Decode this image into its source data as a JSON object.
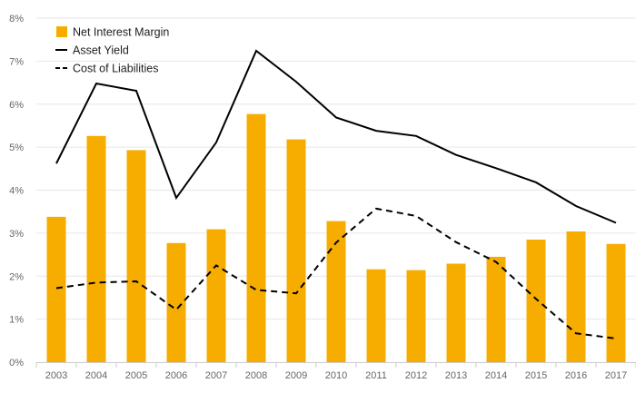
{
  "chart_data": {
    "type": "bar",
    "categories": [
      "2003",
      "2004",
      "2005",
      "2006",
      "2007",
      "2008",
      "2009",
      "2010",
      "2011",
      "2012",
      "2013",
      "2014",
      "2015",
      "2016",
      "2017"
    ],
    "ylim": [
      0,
      8
    ],
    "yticks": [
      "0%",
      "1%",
      "2%",
      "3%",
      "4%",
      "5%",
      "6%",
      "7%",
      "8%"
    ],
    "grid": true,
    "legend_position": "top-left",
    "series": [
      {
        "name": "Net Interest Margin",
        "kind": "bar",
        "color": "#f7ad00",
        "values": [
          3.38,
          5.26,
          4.93,
          2.77,
          3.09,
          5.77,
          5.18,
          3.28,
          2.16,
          2.14,
          2.29,
          2.45,
          2.85,
          3.04,
          2.75
        ]
      },
      {
        "name": "Asset Yield",
        "kind": "line",
        "style": "solid",
        "color": "#000000",
        "values": [
          4.62,
          6.48,
          6.31,
          3.82,
          5.11,
          7.24,
          6.52,
          5.69,
          5.38,
          5.26,
          4.82,
          4.51,
          4.18,
          3.63,
          3.24
        ]
      },
      {
        "name": "Cost of Liabilities",
        "kind": "line",
        "style": "dashed",
        "color": "#000000",
        "values": [
          1.72,
          1.85,
          1.88,
          1.22,
          2.25,
          1.68,
          1.6,
          2.78,
          3.57,
          3.4,
          2.79,
          2.33,
          1.47,
          0.67,
          0.55
        ]
      }
    ]
  }
}
